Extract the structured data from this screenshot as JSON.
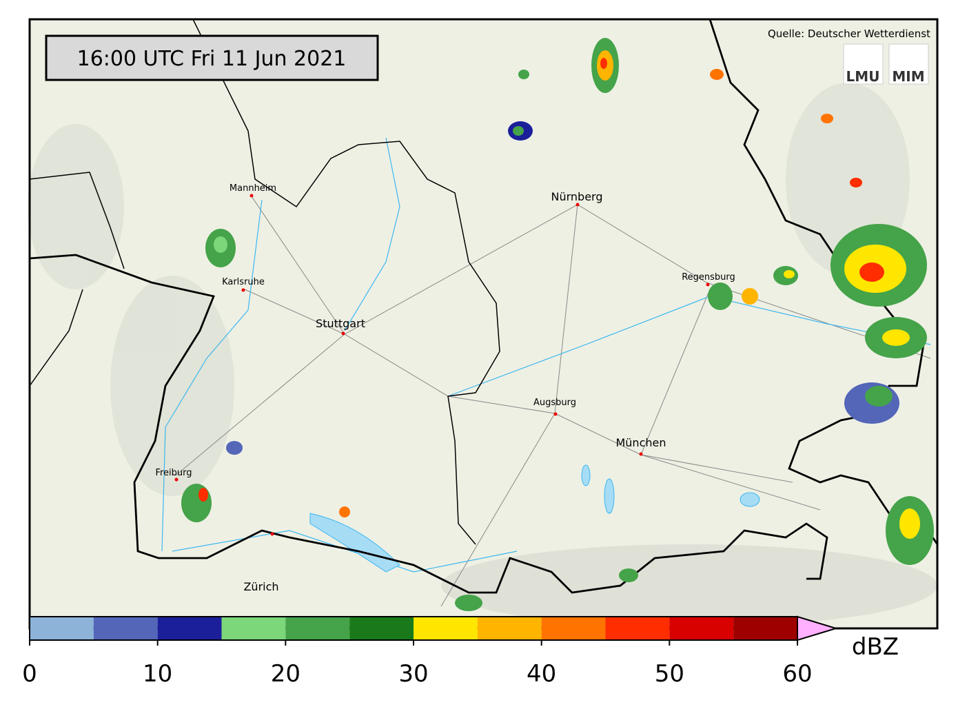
{
  "header": {
    "timestamp": "16:00 UTC  Fri 11 Jun 2021",
    "source": "Quelle: Deutscher Wetterdienst",
    "logos": [
      "LMU",
      "MIM"
    ]
  },
  "cities": [
    "Mannheim",
    "Nürnberg",
    "Regensburg",
    "Karlsruhe",
    "Stuttgart",
    "Augsburg",
    "München",
    "Freiburg",
    "Zürich"
  ],
  "colorbar": {
    "bounds": [
      0,
      5,
      10,
      15,
      20,
      25,
      30,
      35,
      40,
      45,
      50,
      55,
      60
    ],
    "colors": [
      "#8db3d9",
      "#5366b8",
      "#1c1f9a",
      "#7cd67a",
      "#45a349",
      "#1a7a1a",
      "#ffe600",
      "#ffb400",
      "#ff7300",
      "#ff2d00",
      "#d90000",
      "#9e0000"
    ],
    "extend_color": "#ffb0ff",
    "ticks": [
      0,
      10,
      20,
      30,
      40,
      50,
      60
    ],
    "unit": "dBZ"
  }
}
